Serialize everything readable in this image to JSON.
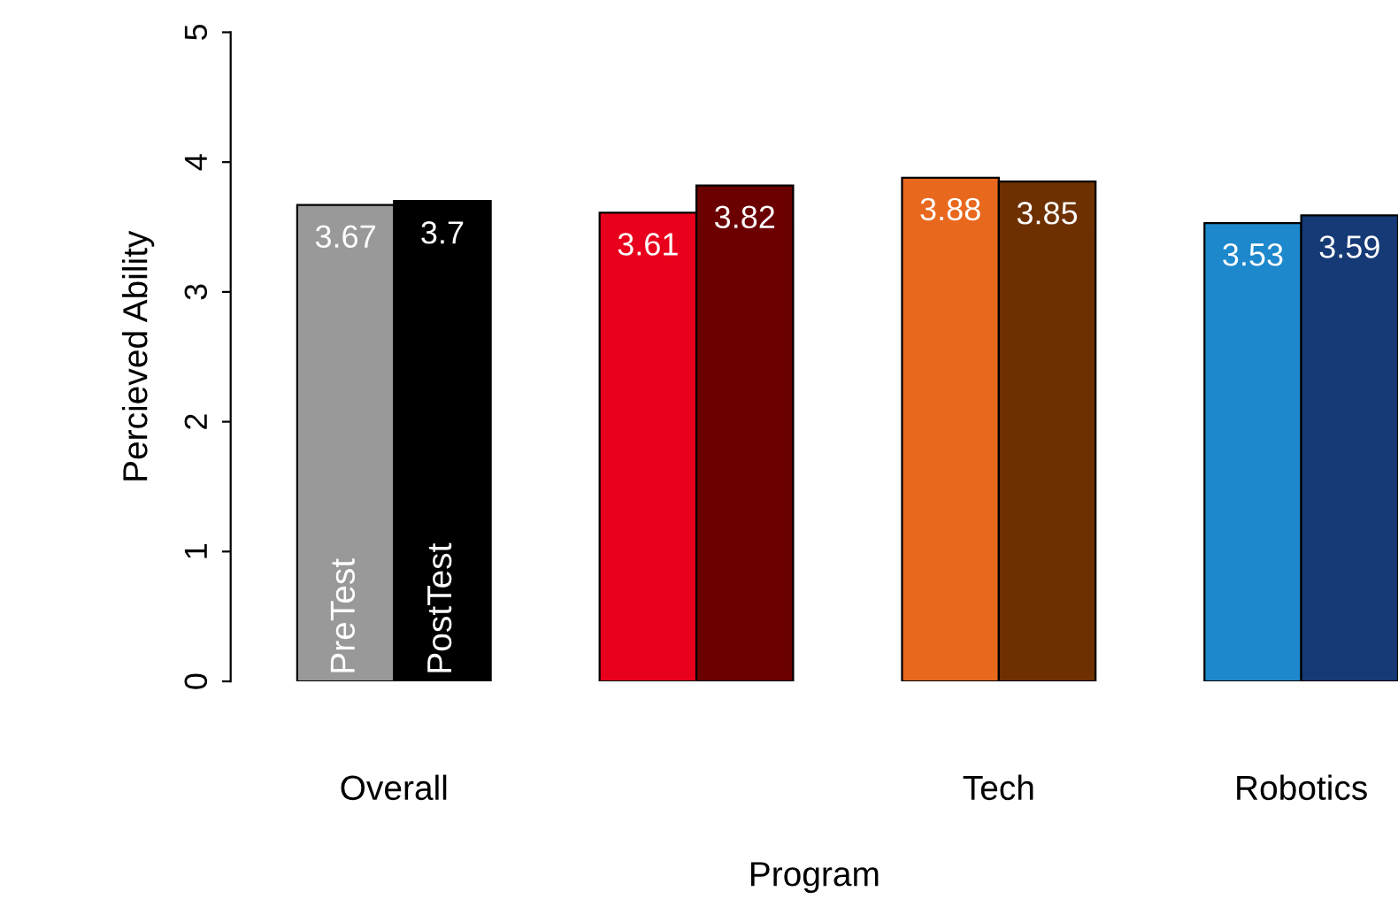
{
  "chart_data": {
    "type": "bar",
    "xlabel": "Program",
    "ylabel": "Percieved Ability",
    "categories": [
      "Overall",
      null,
      "Tech",
      "Robotics"
    ],
    "series": [
      {
        "name": "PreTest",
        "colors": [
          "#999999",
          "#e8001c",
          "#e8681e",
          "#1e88cc"
        ],
        "values": [
          3.67,
          3.61,
          3.88,
          3.53
        ]
      },
      {
        "name": "PostTest",
        "colors": [
          "#000000",
          "#6b0000",
          "#6e3000",
          "#163a75"
        ],
        "values": [
          3.7,
          3.82,
          3.85,
          3.59
        ]
      }
    ],
    "ylim": [
      0,
      5
    ],
    "yticks": [
      0,
      1,
      2,
      3,
      4,
      5
    ],
    "data_labels": true,
    "grid": false,
    "legend": false
  }
}
